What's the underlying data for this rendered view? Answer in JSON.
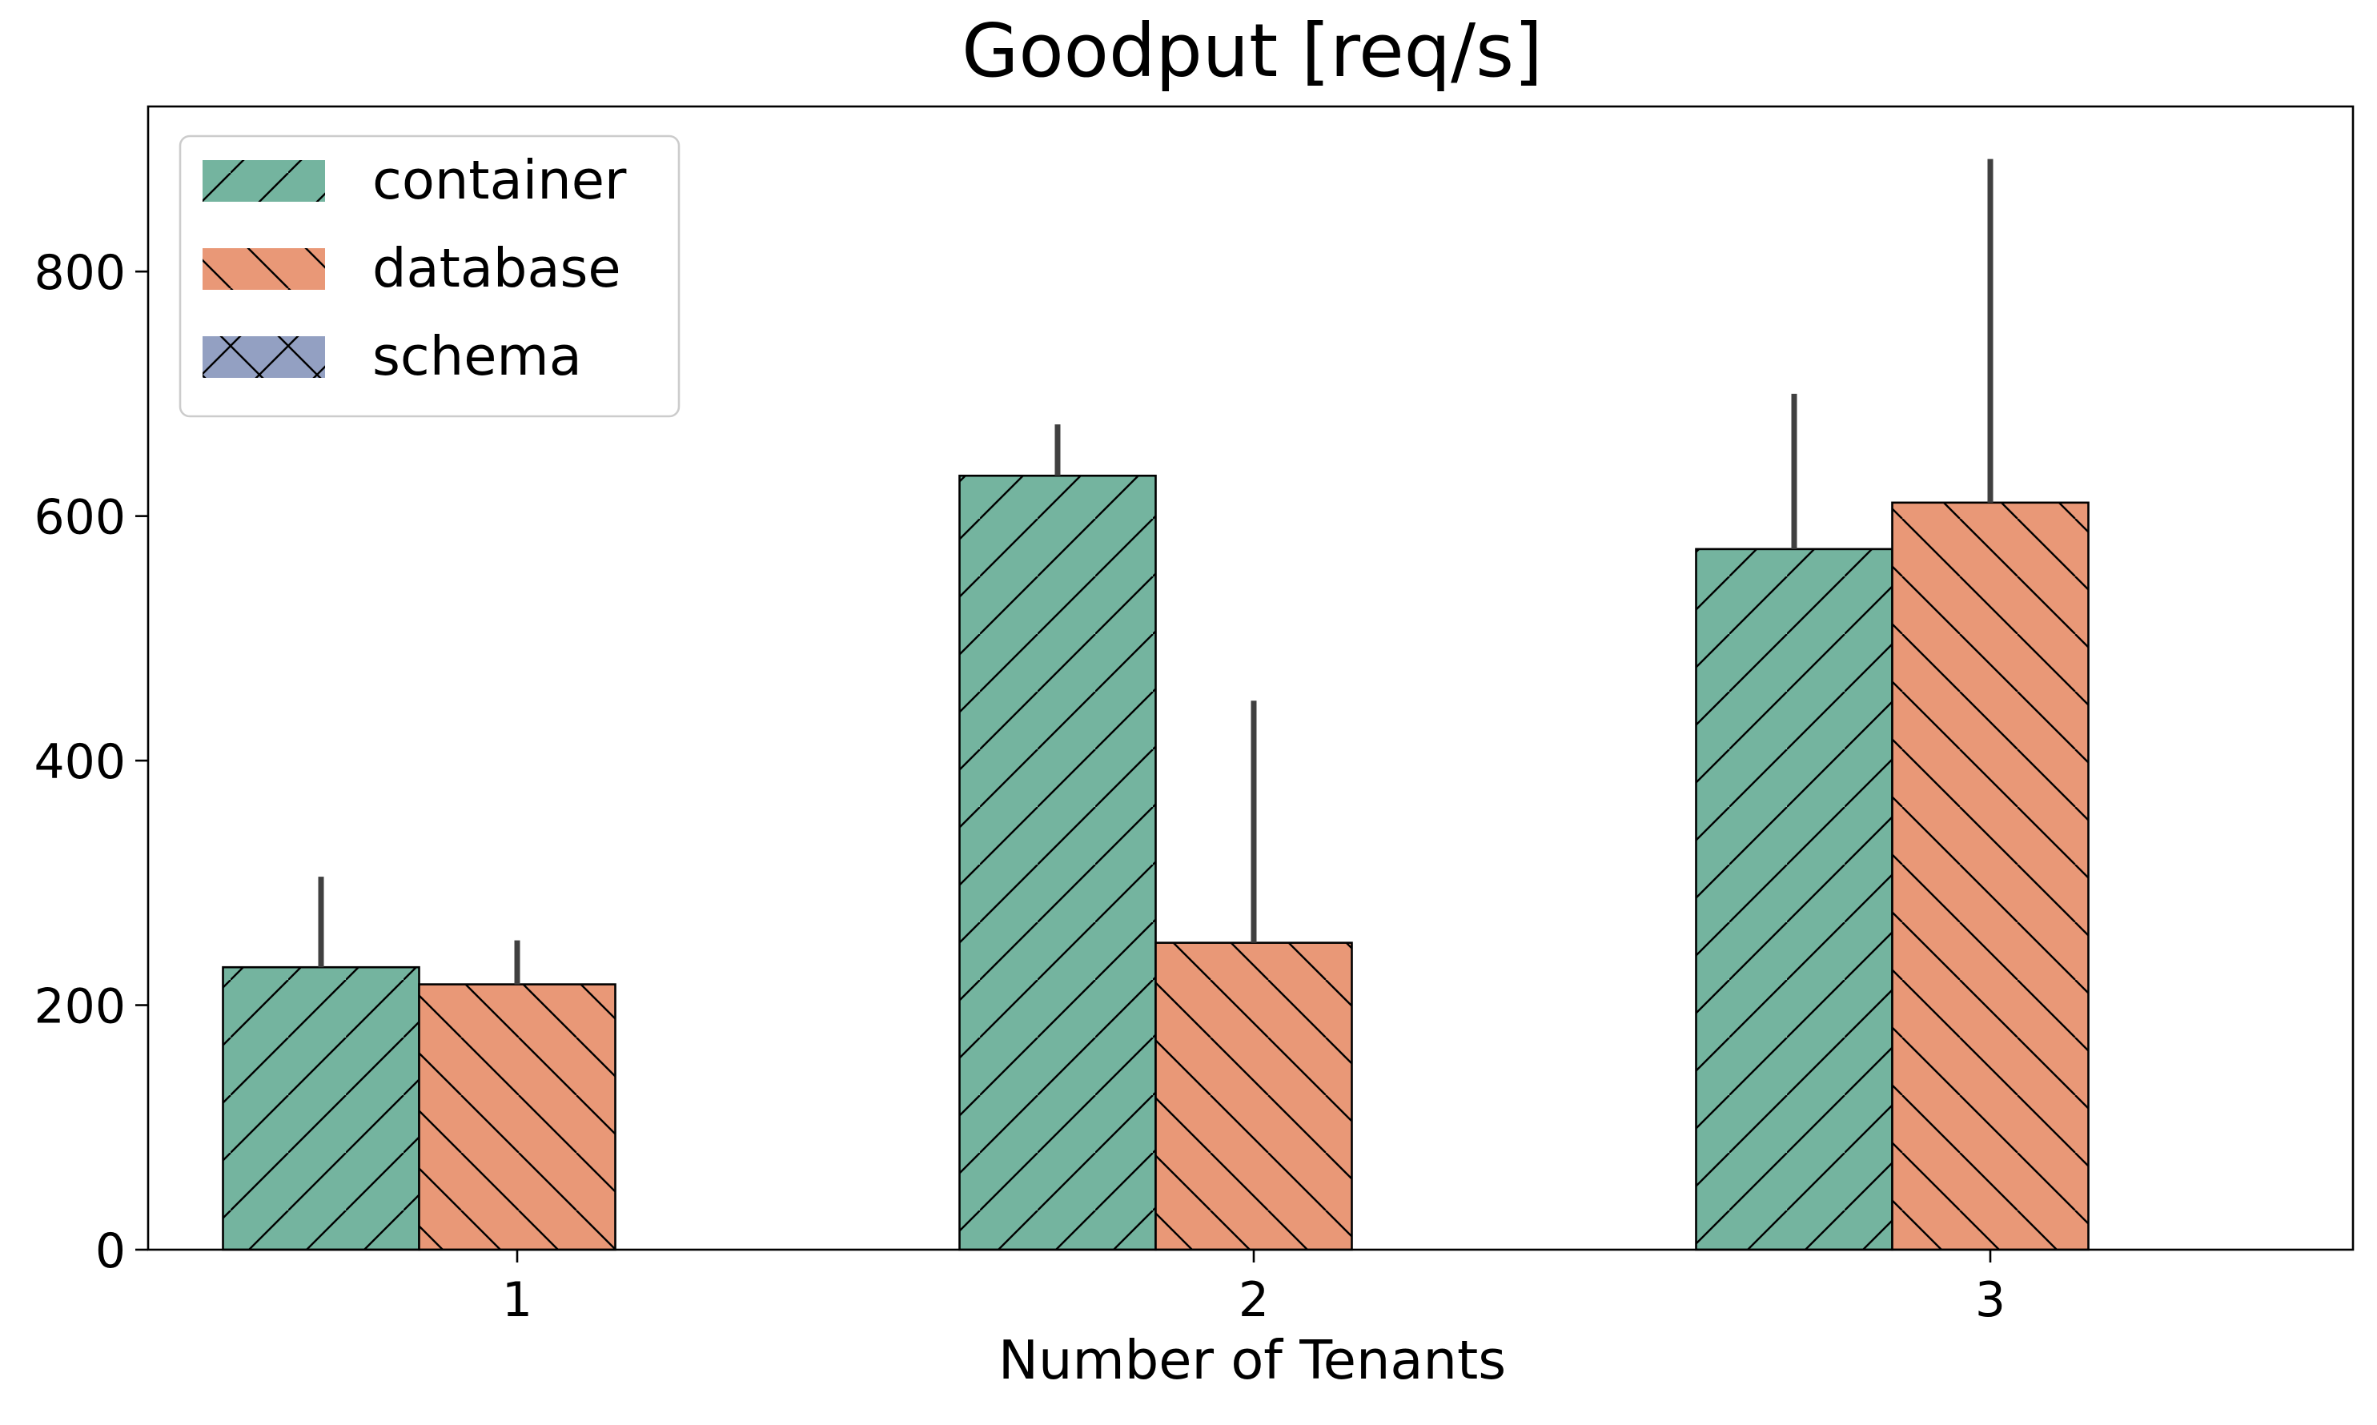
{
  "chart_data": {
    "type": "bar",
    "title": "Goodput [req/s]",
    "xlabel": "Number of Tenants",
    "ylabel": "",
    "categories": [
      "1",
      "2",
      "3"
    ],
    "ylim": [
      0,
      935
    ],
    "yticks": [
      0,
      200,
      400,
      600,
      800
    ],
    "grid": false,
    "legend_position": "top-left",
    "series": [
      {
        "name": "container",
        "color": "#74b49f",
        "hatch": "/",
        "values": [
          231,
          633,
          573
        ],
        "error_low": [
          231,
          633,
          573
        ],
        "error_high": [
          305,
          675,
          700
        ]
      },
      {
        "name": "database",
        "color": "#e99877",
        "hatch": "\\",
        "values": [
          217,
          251,
          611
        ],
        "error_low": [
          217,
          251,
          611
        ],
        "error_high": [
          253,
          449,
          892
        ]
      },
      {
        "name": "schema",
        "color": "#93a0c2",
        "hatch": "x",
        "values": [
          null,
          null,
          null
        ]
      }
    ]
  }
}
